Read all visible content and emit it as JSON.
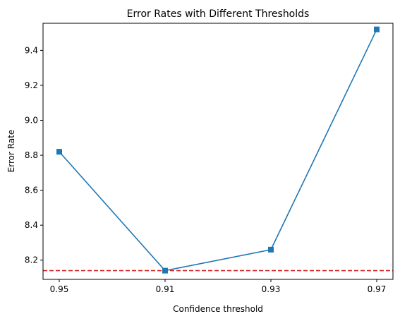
{
  "chart_data": {
    "type": "line",
    "title": "Error Rates with Different Thresholds",
    "xlabel": "Confidence threshold",
    "ylabel": "Error Rate",
    "categories": [
      "0.95",
      "0.91",
      "0.93",
      "0.97"
    ],
    "series": [
      {
        "values": [
          8.82,
          8.14,
          8.26,
          9.52
        ],
        "color": "#1f77b4",
        "marker": "square"
      }
    ],
    "reference_line": {
      "value": 8.14,
      "color": "#d62728",
      "style": "dashed"
    },
    "ylim": [
      8.09,
      9.555
    ],
    "yticks": [
      8.2,
      8.4,
      8.6,
      8.8,
      9.0,
      9.2,
      9.4
    ],
    "ytick_labels": [
      "8.2",
      "8.4",
      "8.6",
      "8.8",
      "9.0",
      "9.2",
      "9.4"
    ],
    "grid": false,
    "legend": "none"
  }
}
